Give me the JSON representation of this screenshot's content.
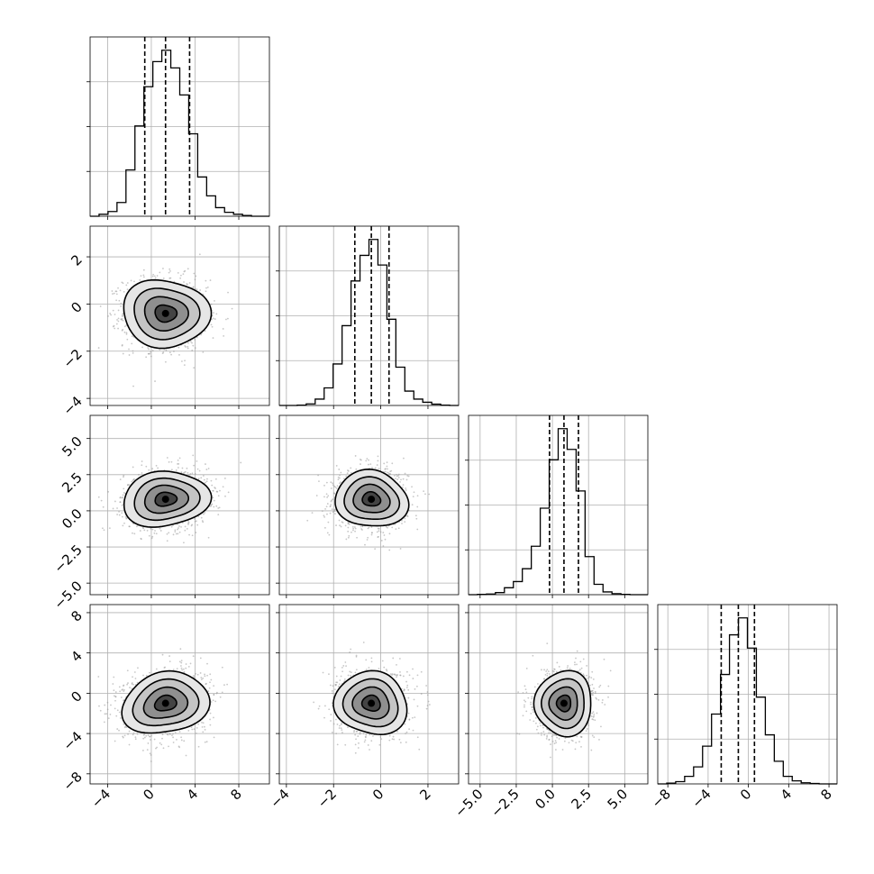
{
  "chart_data": {
    "type": "corner",
    "dimensions": [
      {
        "mean": 1.3,
        "sd": 1.9,
        "range": [
          -5.6,
          10.8
        ],
        "ticks": [
          -4,
          0,
          4,
          8
        ],
        "tick_labels": [
          "−4",
          "0",
          "4",
          "8"
        ],
        "quantiles": [
          -0.6,
          1.3,
          3.5
        ]
      },
      {
        "mean": -0.4,
        "sd": 0.75,
        "range": [
          -4.3,
          3.3
        ],
        "ticks": [
          -4,
          -2,
          0,
          2
        ],
        "tick_labels": [
          "−4",
          "−2",
          "0",
          "2"
        ],
        "quantiles": [
          -1.1,
          -0.4,
          0.35
        ]
      },
      {
        "mean": 0.8,
        "sd": 1.0,
        "range": [
          -5.8,
          6.6
        ],
        "ticks": [
          -5.0,
          -2.5,
          0.0,
          2.5,
          5.0
        ],
        "tick_labels": [
          "−5.0",
          "−2.5",
          "0.0",
          "2.5",
          "5.0"
        ],
        "quantiles": [
          -0.2,
          0.8,
          1.8
        ]
      },
      {
        "mean": -1.0,
        "sd": 1.6,
        "range": [
          -9.0,
          8.8
        ],
        "ticks": [
          -8,
          -4,
          0,
          4,
          8
        ],
        "tick_labels": [
          "−8",
          "−4",
          "0",
          "4",
          "8"
        ],
        "quantiles": [
          -2.7,
          -1.0,
          0.6
        ]
      }
    ],
    "histograms": [
      {
        "bin_edges": [
          -5.6,
          -4.78,
          -3.96,
          -3.14,
          -2.32,
          -1.5,
          -0.68,
          0.14,
          0.96,
          1.78,
          2.6,
          3.42,
          4.24,
          5.06,
          5.88,
          6.7,
          7.52,
          8.34,
          9.16,
          9.98,
          10.8
        ],
        "counts": [
          0,
          5,
          12,
          35,
          118,
          230,
          330,
          394,
          423,
          378,
          309,
          210,
          100,
          52,
          22,
          10,
          5,
          2,
          0,
          0
        ]
      },
      {
        "bin_edges": [
          -4.3,
          -3.92,
          -3.54,
          -3.16,
          -2.78,
          -2.4,
          -2.02,
          -1.64,
          -1.26,
          -0.88,
          -0.5,
          -0.12,
          0.26,
          0.64,
          1.02,
          1.4,
          1.78,
          2.16,
          2.54,
          2.92,
          3.3
        ],
        "counts": [
          0,
          0,
          1,
          5,
          20,
          55,
          130,
          250,
          390,
          470,
          520,
          440,
          270,
          120,
          45,
          20,
          10,
          4,
          1,
          0
        ]
      },
      {
        "bin_edges": [
          -5.8,
          -5.18,
          -4.56,
          -3.94,
          -3.32,
          -2.7,
          -2.08,
          -1.46,
          -0.84,
          -0.22,
          0.4,
          1.02,
          1.64,
          2.26,
          2.88,
          3.5,
          4.12,
          4.74,
          5.36,
          5.98,
          6.6
        ],
        "counts": [
          0,
          1,
          2,
          6,
          20,
          38,
          75,
          140,
          250,
          390,
          480,
          420,
          300,
          110,
          30,
          8,
          3,
          1,
          0,
          0
        ]
      },
      {
        "bin_edges": [
          -9.0,
          -8.11,
          -7.22,
          -6.33,
          -5.44,
          -4.55,
          -3.66,
          -2.77,
          -1.88,
          -0.99,
          -0.1,
          0.79,
          1.68,
          2.57,
          3.46,
          4.35,
          5.24,
          6.13,
          7.02,
          7.91,
          8.8
        ],
        "counts": [
          0,
          2,
          6,
          20,
          45,
          100,
          185,
          290,
          395,
          440,
          360,
          230,
          130,
          60,
          20,
          8,
          3,
          1,
          0,
          0
        ]
      }
    ],
    "pair_correlations": [
      {
        "row": 1,
        "col": 0,
        "rho": -0.05
      },
      {
        "row": 2,
        "col": 0,
        "rho": 0.1
      },
      {
        "row": 2,
        "col": 1,
        "rho": 0.0
      },
      {
        "row": 3,
        "col": 0,
        "rho": 0.15
      },
      {
        "row": 3,
        "col": 1,
        "rho": 0.0
      },
      {
        "row": 3,
        "col": 2,
        "rho": 0.1
      }
    ],
    "contour_levels_sigma": [
      0.5,
      1.0,
      1.5,
      2.0
    ],
    "quantile_line_style": "dashed",
    "grid": true,
    "colors": {
      "line": "#000000",
      "scatter": "#999999",
      "grid": "#b0b0b0"
    }
  }
}
